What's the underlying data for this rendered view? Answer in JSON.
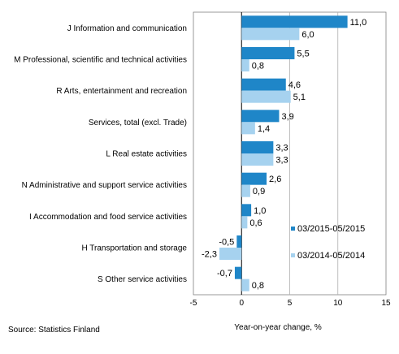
{
  "chart_data": {
    "type": "bar",
    "orientation": "horizontal",
    "categories": [
      "J Information and communication",
      "M Professional, scientific and technical activities",
      "R Arts, entertainment and recreation",
      "Services, total (excl. Trade)",
      "L Real estate activities",
      "N Administrative and support service activities",
      "I Accommodation and food service activities",
      "H Transportation and storage",
      "S Other service activities"
    ],
    "series": [
      {
        "name": "03/2015-05/2015",
        "color": "#1f86c8",
        "values": [
          11.0,
          5.5,
          4.6,
          3.9,
          3.3,
          2.6,
          1.0,
          -0.5,
          -0.7
        ],
        "labels": [
          "11,0",
          "5,5",
          "4,6",
          "3,9",
          "3,3",
          "2,6",
          "1,0",
          "-0,5",
          "-0,7"
        ]
      },
      {
        "name": "03/2014-05/2014",
        "color": "#a6d2ef",
        "values": [
          6.0,
          0.8,
          5.1,
          1.4,
          3.3,
          0.9,
          0.6,
          -2.3,
          0.8
        ],
        "labels": [
          "6,0",
          "0,8",
          "5,1",
          "1,4",
          "3,3",
          "0,9",
          "0,6",
          "-2,3",
          "0,8"
        ]
      }
    ],
    "xlim": [
      -5,
      15
    ],
    "xticks": [
      -5,
      0,
      5,
      10,
      15
    ],
    "xtick_labels": [
      "-5",
      "0",
      "5",
      "10",
      "15"
    ],
    "xlabel": "Year-on-year change, %",
    "grid": "vertical",
    "legend": "right"
  },
  "source": "Source:  Statistics Finland"
}
